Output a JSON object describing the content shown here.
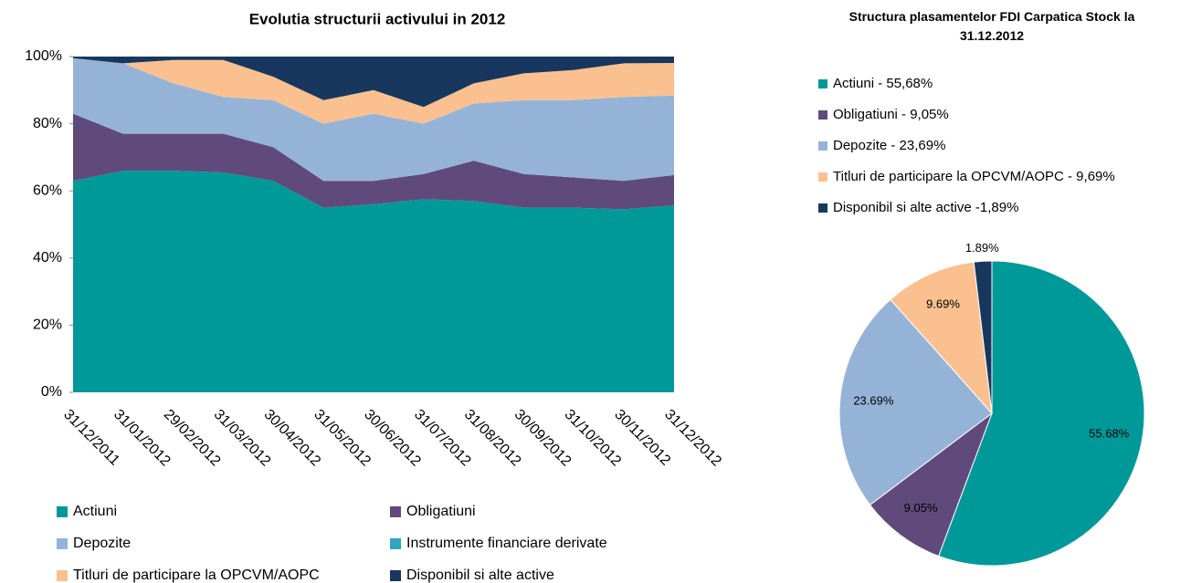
{
  "chart_data": [
    {
      "type": "stacked_area",
      "title": "Evolutia structurii activului  in 2012",
      "categories": [
        "31/12/2011",
        "31/01/2012",
        "29/02/2012",
        "31/03/2012",
        "30/04/2012",
        "31/05/2012",
        "30/06/2012",
        "31/07/2012",
        "31/08/2012",
        "30/09/2012",
        "31/10/2012",
        "30/11/2012",
        "31/12/2012"
      ],
      "series": [
        {
          "name": "Actiuni",
          "color": "#009999",
          "values": [
            63,
            66,
            66,
            65.5,
            63,
            55,
            56,
            57.5,
            57,
            55,
            55,
            54.5,
            55.7
          ]
        },
        {
          "name": "Obligatiuni",
          "color": "#604a7b",
          "values": [
            20,
            11,
            11,
            11.5,
            10,
            8,
            7,
            7.5,
            12,
            10,
            9,
            8.5,
            9
          ]
        },
        {
          "name": "Depozite",
          "color": "#95b3d7",
          "values": [
            16.5,
            21,
            15,
            11,
            14,
            17,
            20,
            15,
            17,
            22,
            23,
            25,
            23.7
          ]
        },
        {
          "name": "Instrumente financiare derivate",
          "color": "#31a5c4",
          "values": [
            0,
            0,
            0,
            0,
            0,
            0,
            0,
            0,
            0,
            0,
            0,
            0,
            0
          ]
        },
        {
          "name": "Titluri de participare la OPCVM/AOPC",
          "color": "#fac090",
          "values": [
            0,
            0,
            7,
            11,
            7,
            7,
            7,
            5,
            6,
            8,
            9,
            10,
            9.7
          ]
        },
        {
          "name": "Disponibil si alte active",
          "color": "#17375e",
          "values": [
            0.5,
            2,
            1,
            1,
            6,
            13,
            10,
            15,
            8,
            5,
            4,
            2,
            1.9
          ]
        }
      ],
      "ylim": [
        0,
        100
      ],
      "yticks": [
        {
          "value": 0,
          "label": "0%"
        },
        {
          "value": 20,
          "label": "20%"
        },
        {
          "value": 40,
          "label": "40%"
        },
        {
          "value": 60,
          "label": "60%"
        },
        {
          "value": 80,
          "label": "80%"
        },
        {
          "value": 100,
          "label": "100%"
        }
      ],
      "legend": "bottom"
    },
    {
      "type": "pie",
      "title": "Structura plasamentelor FDI Carpatica Stock la 31.12.2012",
      "categories": [
        "Actiuni - 55,68%",
        "Obligatiuni - 9,05%",
        "Depozite - 23,69%",
        "Titluri de participare la OPCVM/AOPC - 9,69%",
        "Disponibil si alte active -1,89%"
      ],
      "values": [
        55.68,
        9.05,
        23.69,
        9.69,
        1.89
      ],
      "value_labels": [
        "55.68%",
        "9.05%",
        "23.69%",
        "9.69%",
        "1.89%"
      ],
      "colors": [
        "#009999",
        "#604a7b",
        "#95b3d7",
        "#fac090",
        "#17375e"
      ],
      "legend": "top"
    }
  ]
}
